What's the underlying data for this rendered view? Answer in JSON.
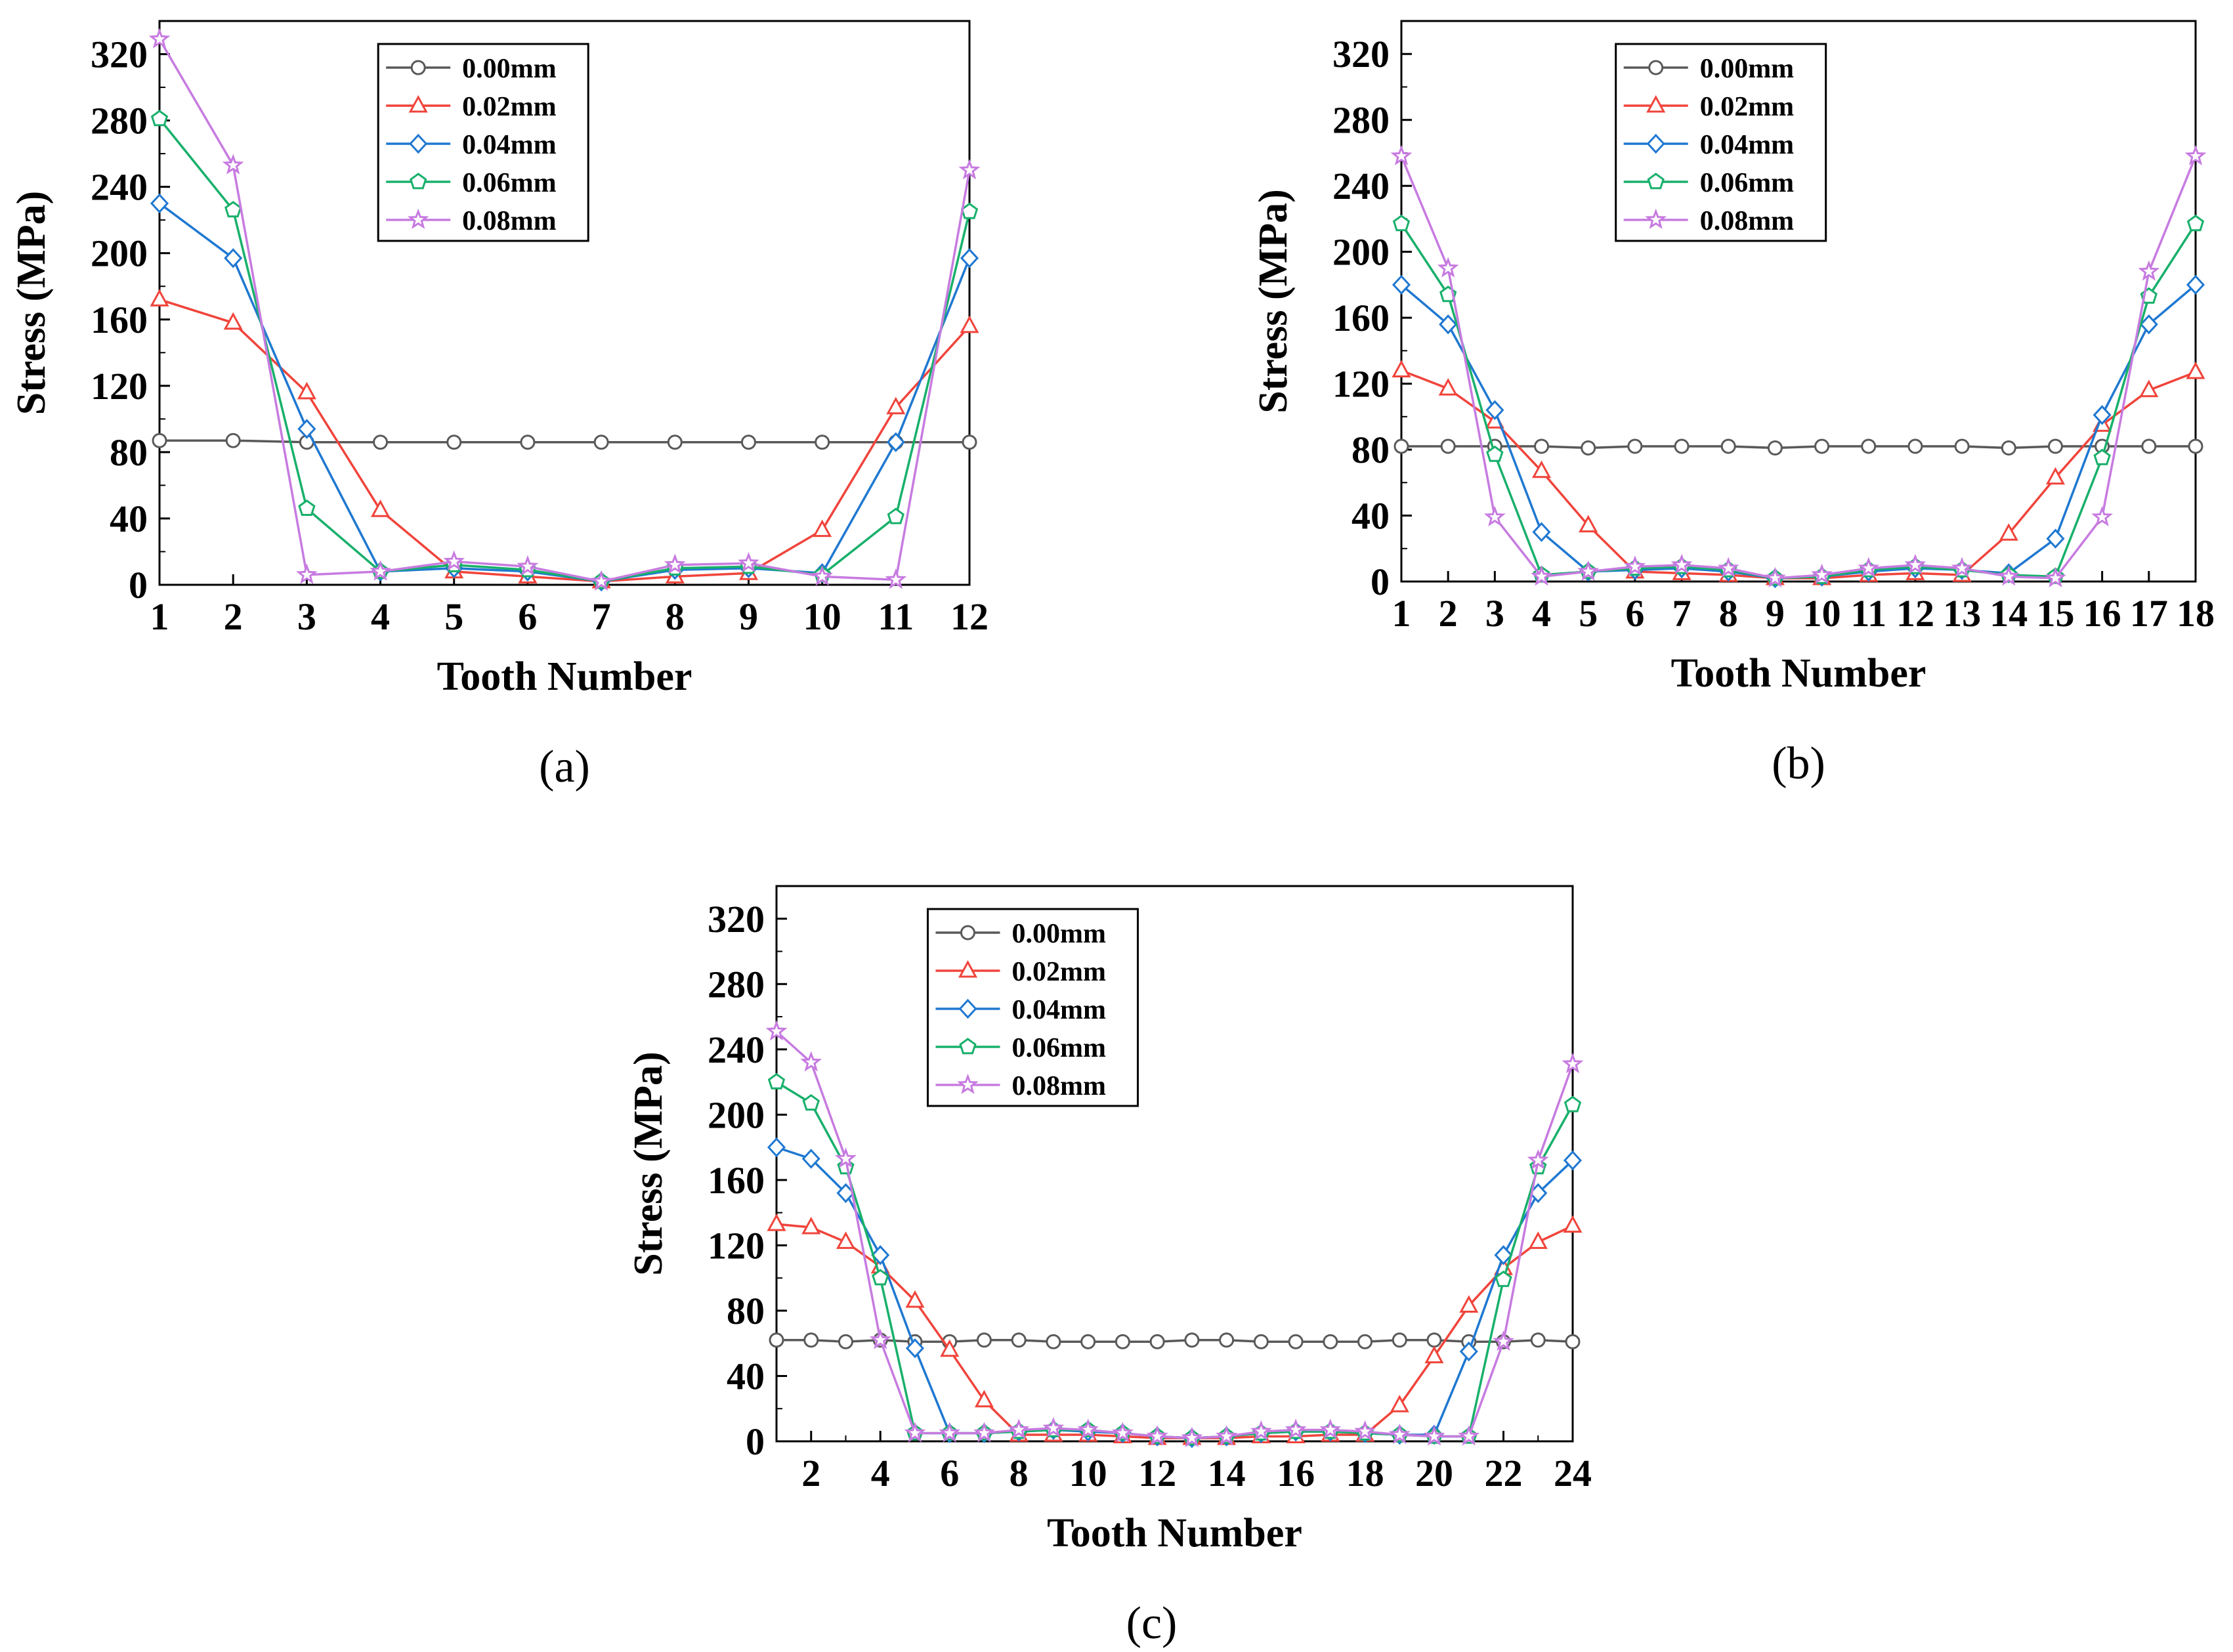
{
  "figure": {
    "series_meta": [
      {
        "name": "0.00mm",
        "color": "#595959",
        "marker": "circle"
      },
      {
        "name": "0.02mm",
        "color": "#f0443b",
        "marker": "triangle"
      },
      {
        "name": "0.04mm",
        "color": "#1f78d1",
        "marker": "diamond"
      },
      {
        "name": "0.06mm",
        "color": "#18b06b",
        "marker": "pentagon"
      },
      {
        "name": "0.08mm",
        "color": "#c77be0",
        "marker": "star"
      }
    ]
  },
  "chart_data": [
    {
      "id": "a",
      "type": "line",
      "caption": "(a)",
      "xlabel": "Tooth Number",
      "ylabel": "Stress (MPa)",
      "xlim": [
        1,
        12
      ],
      "ylim": [
        0,
        340
      ],
      "xticks": [
        1,
        2,
        3,
        4,
        5,
        6,
        7,
        8,
        9,
        10,
        11,
        12
      ],
      "yticks": [
        0,
        40,
        80,
        120,
        160,
        200,
        240,
        280,
        320
      ],
      "legend": "top-center",
      "grid": false,
      "x": [
        1,
        2,
        3,
        4,
        5,
        6,
        7,
        8,
        9,
        10,
        11,
        12
      ],
      "series": [
        {
          "name": "0.00mm",
          "values": [
            87,
            87,
            86,
            86,
            86,
            86,
            86,
            86,
            86,
            86,
            86,
            86
          ]
        },
        {
          "name": "0.02mm",
          "values": [
            172,
            158,
            116,
            45,
            8,
            5,
            2,
            5,
            7,
            33,
            107,
            156
          ]
        },
        {
          "name": "0.04mm",
          "values": [
            230,
            197,
            94,
            8,
            10,
            8,
            2,
            9,
            10,
            7,
            86,
            197
          ]
        },
        {
          "name": "0.06mm",
          "values": [
            281,
            226,
            46,
            8,
            12,
            9,
            2,
            10,
            11,
            6,
            41,
            225
          ]
        },
        {
          "name": "0.08mm",
          "values": [
            329,
            253,
            6,
            8,
            14,
            11,
            2,
            12,
            13,
            5,
            3,
            250
          ]
        }
      ]
    },
    {
      "id": "b",
      "type": "line",
      "caption": "(b)",
      "xlabel": "Tooth Number",
      "ylabel": "Stress (MPa)",
      "xlim": [
        1,
        18
      ],
      "ylim": [
        0,
        340
      ],
      "xticks": [
        1,
        2,
        3,
        4,
        5,
        6,
        7,
        8,
        9,
        10,
        11,
        12,
        13,
        14,
        15,
        16,
        17,
        18
      ],
      "yticks": [
        0,
        40,
        80,
        120,
        160,
        200,
        240,
        280,
        320
      ],
      "legend": "top-center",
      "grid": false,
      "x": [
        1,
        2,
        3,
        4,
        5,
        6,
        7,
        8,
        9,
        10,
        11,
        12,
        13,
        14,
        15,
        16,
        17,
        18
      ],
      "series": [
        {
          "name": "0.00mm",
          "values": [
            82,
            82,
            82,
            82,
            81,
            82,
            82,
            82,
            81,
            82,
            82,
            82,
            82,
            81,
            82,
            82,
            82,
            82
          ]
        },
        {
          "name": "0.02mm",
          "values": [
            128,
            117,
            97,
            67,
            34,
            6,
            5,
            4,
            2,
            2,
            4,
            5,
            4,
            29,
            63,
            95,
            116,
            127
          ]
        },
        {
          "name": "0.04mm",
          "values": [
            180,
            156,
            104,
            30,
            6,
            7,
            8,
            6,
            2,
            3,
            6,
            8,
            7,
            5,
            26,
            101,
            156,
            180
          ]
        },
        {
          "name": "0.06mm",
          "values": [
            217,
            174,
            77,
            4,
            6,
            8,
            9,
            7,
            2,
            3,
            7,
            9,
            7,
            4,
            3,
            75,
            173,
            217
          ]
        },
        {
          "name": "0.08mm",
          "values": [
            258,
            190,
            39,
            3,
            6,
            9,
            10,
            8,
            2,
            4,
            8,
            10,
            8,
            3,
            2,
            39,
            188,
            258
          ]
        }
      ]
    },
    {
      "id": "c",
      "type": "line",
      "caption": "(c)",
      "xlabel": "Tooth Number",
      "ylabel": "Stress (MPa)",
      "xlim": [
        1,
        24
      ],
      "ylim": [
        0,
        340
      ],
      "xticks": [
        2,
        4,
        6,
        8,
        10,
        12,
        14,
        16,
        18,
        20,
        22,
        24
      ],
      "yticks": [
        0,
        40,
        80,
        120,
        160,
        200,
        240,
        280,
        320
      ],
      "legend": "top-center",
      "grid": false,
      "x": [
        1,
        2,
        3,
        4,
        5,
        6,
        7,
        8,
        9,
        10,
        11,
        12,
        13,
        14,
        15,
        16,
        17,
        18,
        19,
        20,
        21,
        22,
        23,
        24
      ],
      "series": [
        {
          "name": "0.00mm",
          "values": [
            62,
            62,
            61,
            62,
            61,
            61,
            62,
            62,
            61,
            61,
            61,
            61,
            62,
            62,
            61,
            61,
            61,
            61,
            62,
            62,
            61,
            61,
            62,
            61
          ]
        },
        {
          "name": "0.02mm",
          "values": [
            133,
            131,
            122,
            107,
            86,
            56,
            25,
            4,
            4,
            4,
            3,
            2,
            2,
            2,
            3,
            3,
            4,
            4,
            22,
            52,
            83,
            106,
            122,
            132
          ]
        },
        {
          "name": "0.04mm",
          "values": [
            180,
            173,
            152,
            114,
            57,
            5,
            5,
            6,
            7,
            6,
            5,
            3,
            2,
            3,
            5,
            6,
            6,
            5,
            4,
            4,
            55,
            114,
            152,
            172
          ]
        },
        {
          "name": "0.06mm",
          "values": [
            220,
            207,
            168,
            100,
            5,
            5,
            5,
            6,
            7,
            7,
            5,
            3,
            2,
            3,
            5,
            6,
            6,
            5,
            4,
            3,
            3,
            99,
            168,
            206
          ]
        },
        {
          "name": "0.08mm",
          "values": [
            251,
            232,
            173,
            62,
            5,
            5,
            5,
            7,
            8,
            7,
            5,
            3,
            2,
            3,
            6,
            7,
            7,
            6,
            4,
            3,
            3,
            61,
            172,
            231
          ]
        }
      ]
    }
  ]
}
